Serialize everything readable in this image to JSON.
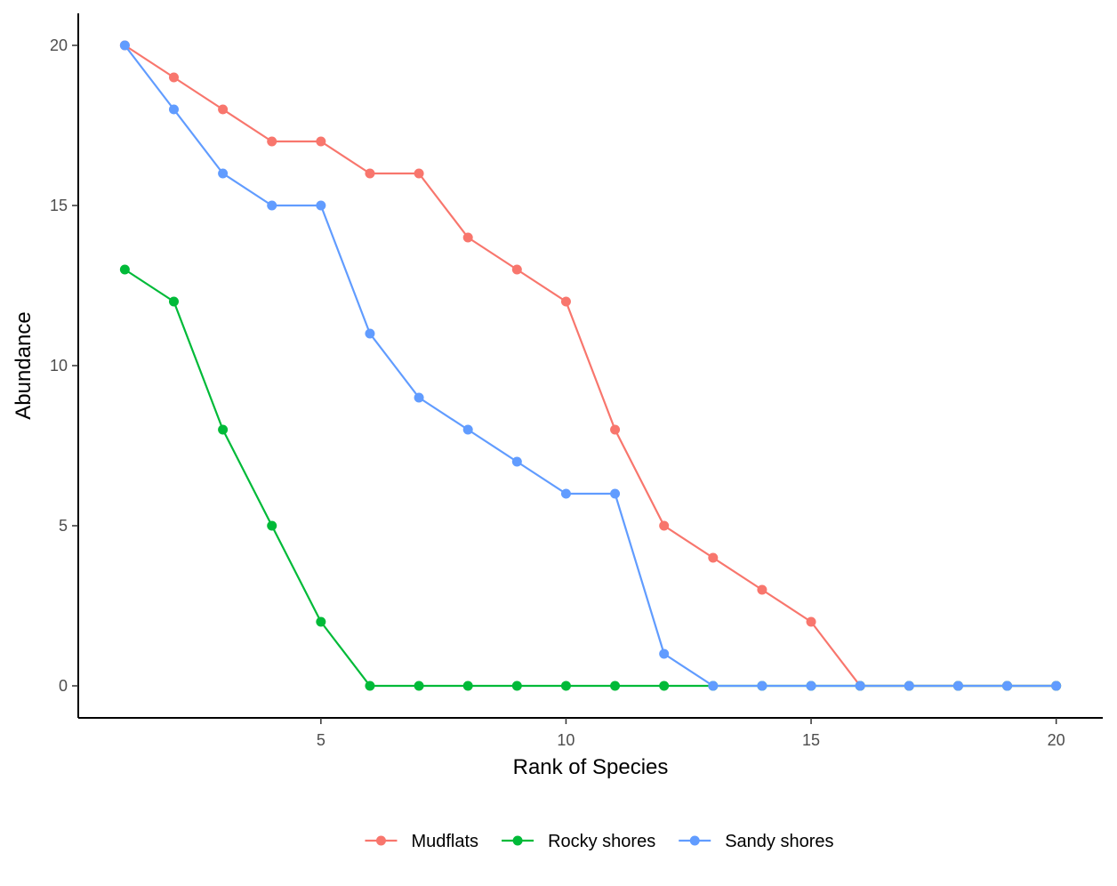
{
  "chart_data": {
    "type": "line",
    "title": "",
    "xlabel": "Rank of Species",
    "ylabel": "Abundance",
    "xlim": [
      0.05,
      20.95
    ],
    "ylim": [
      -1,
      21
    ],
    "x_ticks": [
      5,
      10,
      15,
      20
    ],
    "y_ticks": [
      0,
      5,
      10,
      15,
      20
    ],
    "grid": false,
    "legend_position": "bottom",
    "x": [
      1,
      2,
      3,
      4,
      5,
      6,
      7,
      8,
      9,
      10,
      11,
      12,
      13,
      14,
      15,
      16,
      17,
      18,
      19,
      20
    ],
    "series": [
      {
        "name": "Mudflats",
        "color": "#F8766D",
        "values": [
          20,
          19,
          18,
          17,
          17,
          16,
          16,
          14,
          13,
          12,
          8,
          5,
          4,
          3,
          2,
          0,
          0,
          0,
          0,
          0
        ]
      },
      {
        "name": "Rocky shores",
        "color": "#00BA38",
        "values": [
          13,
          12,
          8,
          5,
          2,
          0,
          0,
          0,
          0,
          0,
          0,
          0,
          0,
          0,
          0,
          0,
          0,
          0,
          0,
          0
        ]
      },
      {
        "name": "Sandy shores",
        "color": "#619CFF",
        "values": [
          20,
          18,
          16,
          15,
          15,
          11,
          9,
          8,
          7,
          6,
          6,
          1,
          0,
          0,
          0,
          0,
          0,
          0,
          0,
          0
        ]
      }
    ]
  }
}
